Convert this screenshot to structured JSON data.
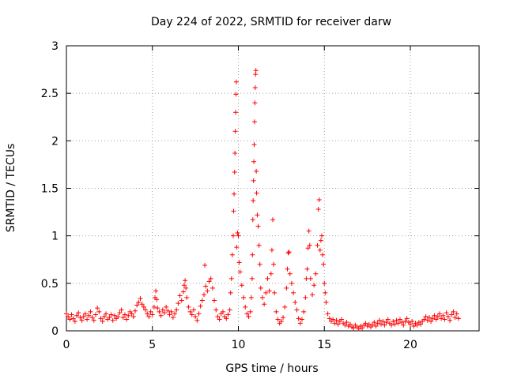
{
  "chart_data": {
    "type": "scatter",
    "title": "Day 224 of 2022, SRMTID for receiver darw",
    "xlabel": "GPS time / hours",
    "ylabel": "SRMTID / TECUs",
    "xlim": [
      0,
      24
    ],
    "ylim": [
      0,
      3
    ],
    "xticks": [
      0,
      5,
      10,
      15,
      20
    ],
    "xtick_labels": [
      "0",
      "5",
      "10",
      "15",
      "20"
    ],
    "yticks": [
      0,
      0.5,
      1,
      1.5,
      2,
      2.5,
      3
    ],
    "ytick_labels": [
      "0",
      "0.5",
      "1",
      "1.5",
      "2",
      "2.5",
      "3"
    ],
    "grid": true,
    "marker": "+",
    "color": "#ff0000",
    "series": [
      {
        "name": "SRMTID",
        "points": [
          [
            0.0,
            0.18
          ],
          [
            0.1,
            0.15
          ],
          [
            0.2,
            0.12
          ],
          [
            0.3,
            0.17
          ],
          [
            0.4,
            0.13
          ],
          [
            0.5,
            0.1
          ],
          [
            0.6,
            0.16
          ],
          [
            0.7,
            0.19
          ],
          [
            0.8,
            0.14
          ],
          [
            0.9,
            0.11
          ],
          [
            1.0,
            0.15
          ],
          [
            1.1,
            0.18
          ],
          [
            1.2,
            0.12
          ],
          [
            1.3,
            0.16
          ],
          [
            1.4,
            0.2
          ],
          [
            1.5,
            0.14
          ],
          [
            1.6,
            0.11
          ],
          [
            1.7,
            0.17
          ],
          [
            1.8,
            0.24
          ],
          [
            1.9,
            0.2
          ],
          [
            2.0,
            0.13
          ],
          [
            2.1,
            0.1
          ],
          [
            2.2,
            0.15
          ],
          [
            2.3,
            0.18
          ],
          [
            2.4,
            0.12
          ],
          [
            2.5,
            0.14
          ],
          [
            2.6,
            0.17
          ],
          [
            2.7,
            0.11
          ],
          [
            2.8,
            0.16
          ],
          [
            2.9,
            0.13
          ],
          [
            3.0,
            0.15
          ],
          [
            3.1,
            0.19
          ],
          [
            3.2,
            0.22
          ],
          [
            3.3,
            0.14
          ],
          [
            3.4,
            0.17
          ],
          [
            3.5,
            0.12
          ],
          [
            3.6,
            0.16
          ],
          [
            3.7,
            0.2
          ],
          [
            3.8,
            0.18
          ],
          [
            3.9,
            0.15
          ],
          [
            4.0,
            0.21
          ],
          [
            4.1,
            0.27
          ],
          [
            4.2,
            0.3
          ],
          [
            4.3,
            0.34
          ],
          [
            4.4,
            0.28
          ],
          [
            4.5,
            0.25
          ],
          [
            4.6,
            0.22
          ],
          [
            4.7,
            0.18
          ],
          [
            4.8,
            0.15
          ],
          [
            4.9,
            0.2
          ],
          [
            5.0,
            0.17
          ],
          [
            5.1,
            0.25
          ],
          [
            5.15,
            0.35
          ],
          [
            5.2,
            0.42
          ],
          [
            5.25,
            0.33
          ],
          [
            5.3,
            0.24
          ],
          [
            5.4,
            0.2
          ],
          [
            5.5,
            0.16
          ],
          [
            5.6,
            0.22
          ],
          [
            5.7,
            0.19
          ],
          [
            5.8,
            0.25
          ],
          [
            5.9,
            0.21
          ],
          [
            6.0,
            0.17
          ],
          [
            6.1,
            0.2
          ],
          [
            6.2,
            0.14
          ],
          [
            6.3,
            0.18
          ],
          [
            6.4,
            0.22
          ],
          [
            6.5,
            0.29
          ],
          [
            6.6,
            0.37
          ],
          [
            6.7,
            0.32
          ],
          [
            6.8,
            0.41
          ],
          [
            6.85,
            0.48
          ],
          [
            6.9,
            0.53
          ],
          [
            6.95,
            0.45
          ],
          [
            7.0,
            0.35
          ],
          [
            7.1,
            0.25
          ],
          [
            7.2,
            0.2
          ],
          [
            7.3,
            0.17
          ],
          [
            7.4,
            0.22
          ],
          [
            7.5,
            0.15
          ],
          [
            7.6,
            0.11
          ],
          [
            7.7,
            0.18
          ],
          [
            7.8,
            0.26
          ],
          [
            7.9,
            0.32
          ],
          [
            8.0,
            0.38
          ],
          [
            8.05,
            0.69
          ],
          [
            8.1,
            0.47
          ],
          [
            8.2,
            0.42
          ],
          [
            8.3,
            0.52
          ],
          [
            8.4,
            0.55
          ],
          [
            8.5,
            0.45
          ],
          [
            8.6,
            0.32
          ],
          [
            8.7,
            0.22
          ],
          [
            8.8,
            0.15
          ],
          [
            8.9,
            0.12
          ],
          [
            9.0,
            0.18
          ],
          [
            9.1,
            0.2
          ],
          [
            9.2,
            0.15
          ],
          [
            9.3,
            0.13
          ],
          [
            9.4,
            0.17
          ],
          [
            9.5,
            0.22
          ],
          [
            9.55,
            0.4
          ],
          [
            9.6,
            0.55
          ],
          [
            9.65,
            0.8
          ],
          [
            9.7,
            1.0
          ],
          [
            9.72,
            1.26
          ],
          [
            9.75,
            1.44
          ],
          [
            9.78,
            1.67
          ],
          [
            9.8,
            1.87
          ],
          [
            9.82,
            2.1
          ],
          [
            9.84,
            2.3
          ],
          [
            9.86,
            2.49
          ],
          [
            9.88,
            2.62
          ],
          [
            9.9,
            0.88
          ],
          [
            9.95,
            1.03
          ],
          [
            10.0,
            1.0
          ],
          [
            10.05,
            0.72
          ],
          [
            10.1,
            0.62
          ],
          [
            10.2,
            0.48
          ],
          [
            10.3,
            0.35
          ],
          [
            10.4,
            0.25
          ],
          [
            10.5,
            0.18
          ],
          [
            10.6,
            0.15
          ],
          [
            10.7,
            0.2
          ],
          [
            10.75,
            0.35
          ],
          [
            10.8,
            0.55
          ],
          [
            10.82,
            0.8
          ],
          [
            10.84,
            1.17
          ],
          [
            10.86,
            1.37
          ],
          [
            10.88,
            1.58
          ],
          [
            10.9,
            1.78
          ],
          [
            10.92,
            1.96
          ],
          [
            10.94,
            2.2
          ],
          [
            10.96,
            2.4
          ],
          [
            10.98,
            2.56
          ],
          [
            11.0,
            2.7
          ],
          [
            11.02,
            2.74
          ],
          [
            11.04,
            1.68
          ],
          [
            11.06,
            1.45
          ],
          [
            11.1,
            1.22
          ],
          [
            11.15,
            1.1
          ],
          [
            11.2,
            0.9
          ],
          [
            11.25,
            0.7
          ],
          [
            11.3,
            0.45
          ],
          [
            11.4,
            0.35
          ],
          [
            11.5,
            0.28
          ],
          [
            11.6,
            0.4
          ],
          [
            11.7,
            0.55
          ],
          [
            11.8,
            0.42
          ],
          [
            11.9,
            0.6
          ],
          [
            11.95,
            0.85
          ],
          [
            12.0,
            1.17
          ],
          [
            12.05,
            0.7
          ],
          [
            12.1,
            0.4
          ],
          [
            12.2,
            0.2
          ],
          [
            12.3,
            0.12
          ],
          [
            12.4,
            0.08
          ],
          [
            12.5,
            0.1
          ],
          [
            12.6,
            0.14
          ],
          [
            12.7,
            0.25
          ],
          [
            12.8,
            0.45
          ],
          [
            12.85,
            0.65
          ],
          [
            12.9,
            0.82
          ],
          [
            12.95,
            0.83
          ],
          [
            13.0,
            0.6
          ],
          [
            13.1,
            0.5
          ],
          [
            13.2,
            0.4
          ],
          [
            13.3,
            0.3
          ],
          [
            13.4,
            0.22
          ],
          [
            13.5,
            0.13
          ],
          [
            13.6,
            0.08
          ],
          [
            13.7,
            0.12
          ],
          [
            13.8,
            0.2
          ],
          [
            13.9,
            0.35
          ],
          [
            13.95,
            0.55
          ],
          [
            14.0,
            0.65
          ],
          [
            14.05,
            0.87
          ],
          [
            14.1,
            1.05
          ],
          [
            14.15,
            0.9
          ],
          [
            14.2,
            0.55
          ],
          [
            14.3,
            0.38
          ],
          [
            14.4,
            0.48
          ],
          [
            14.5,
            0.6
          ],
          [
            14.6,
            0.9
          ],
          [
            14.65,
            1.28
          ],
          [
            14.7,
            1.38
          ],
          [
            14.75,
            0.85
          ],
          [
            14.8,
            0.95
          ],
          [
            14.85,
            1.0
          ],
          [
            14.9,
            0.8
          ],
          [
            14.95,
            0.7
          ],
          [
            15.0,
            0.5
          ],
          [
            15.05,
            0.4
          ],
          [
            15.1,
            0.3
          ],
          [
            15.2,
            0.18
          ],
          [
            15.3,
            0.13
          ],
          [
            15.4,
            0.1
          ],
          [
            15.5,
            0.12
          ],
          [
            15.6,
            0.08
          ],
          [
            15.7,
            0.11
          ],
          [
            15.8,
            0.07
          ],
          [
            15.9,
            0.1
          ],
          [
            16.0,
            0.12
          ],
          [
            16.1,
            0.08
          ],
          [
            16.2,
            0.06
          ],
          [
            16.3,
            0.09
          ],
          [
            16.4,
            0.05
          ],
          [
            16.5,
            0.07
          ],
          [
            16.6,
            0.04
          ],
          [
            16.7,
            0.03
          ],
          [
            16.8,
            0.06
          ],
          [
            16.9,
            0.04
          ],
          [
            17.0,
            0.02
          ],
          [
            17.1,
            0.05
          ],
          [
            17.2,
            0.03
          ],
          [
            17.3,
            0.06
          ],
          [
            17.4,
            0.08
          ],
          [
            17.5,
            0.05
          ],
          [
            17.6,
            0.07
          ],
          [
            17.7,
            0.04
          ],
          [
            17.8,
            0.06
          ],
          [
            17.9,
            0.09
          ],
          [
            18.0,
            0.05
          ],
          [
            18.1,
            0.08
          ],
          [
            18.2,
            0.11
          ],
          [
            18.3,
            0.07
          ],
          [
            18.4,
            0.1
          ],
          [
            18.5,
            0.06
          ],
          [
            18.6,
            0.09
          ],
          [
            18.7,
            0.12
          ],
          [
            18.8,
            0.08
          ],
          [
            18.9,
            0.06
          ],
          [
            19.0,
            0.1
          ],
          [
            19.1,
            0.07
          ],
          [
            19.2,
            0.11
          ],
          [
            19.3,
            0.08
          ],
          [
            19.4,
            0.12
          ],
          [
            19.5,
            0.09
          ],
          [
            19.6,
            0.06
          ],
          [
            19.7,
            0.1
          ],
          [
            19.8,
            0.13
          ],
          [
            19.9,
            0.09
          ],
          [
            20.0,
            0.07
          ],
          [
            20.1,
            0.1
          ],
          [
            20.2,
            0.05
          ],
          [
            20.3,
            0.08
          ],
          [
            20.4,
            0.06
          ],
          [
            20.5,
            0.09
          ],
          [
            20.6,
            0.07
          ],
          [
            20.7,
            0.1
          ],
          [
            20.8,
            0.12
          ],
          [
            20.9,
            0.15
          ],
          [
            21.0,
            0.11
          ],
          [
            21.1,
            0.14
          ],
          [
            21.2,
            0.1
          ],
          [
            21.3,
            0.13
          ],
          [
            21.4,
            0.16
          ],
          [
            21.5,
            0.12
          ],
          [
            21.6,
            0.15
          ],
          [
            21.7,
            0.18
          ],
          [
            21.8,
            0.13
          ],
          [
            21.9,
            0.16
          ],
          [
            22.0,
            0.12
          ],
          [
            22.1,
            0.19
          ],
          [
            22.2,
            0.15
          ],
          [
            22.3,
            0.11
          ],
          [
            22.4,
            0.17
          ],
          [
            22.5,
            0.2
          ],
          [
            22.6,
            0.14
          ],
          [
            22.7,
            0.18
          ],
          [
            22.8,
            0.13
          ]
        ]
      }
    ]
  }
}
